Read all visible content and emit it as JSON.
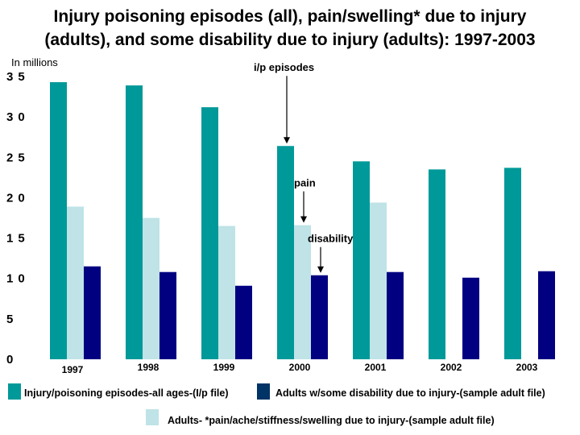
{
  "title": {
    "line1": "Injury poisoning episodes (all), pain/swelling* due to injury",
    "line2": "(adults), and some disability due to injury (adults): 1997-2003"
  },
  "units_label": "In millions",
  "chart_data": {
    "type": "bar",
    "title": "Injury poisoning episodes (all), pain/swelling* due to injury (adults), and some disability due to injury (adults): 1997-2003",
    "ylabel": "In millions",
    "xlabel": "",
    "ylim": [
      0,
      35
    ],
    "yticks": [
      "0",
      "5",
      "10",
      "15",
      "20",
      "25",
      "30",
      "35"
    ],
    "grid": false,
    "legend_position": "bottom",
    "categories": [
      "1997",
      "1998",
      "1999",
      "2000",
      "2001",
      "2002",
      "2003"
    ],
    "series": [
      {
        "name": "Injury/poisoning episodes-all ages-(I/p file)",
        "color": "#009999",
        "values": [
          34.3,
          33.9,
          31.2,
          26.4,
          24.5,
          23.5,
          23.7
        ]
      },
      {
        "name": "Adults- *pain/ache/stiffness/swelling due to injury-(sample adult file)",
        "color": "#bfe3e6",
        "values": [
          18.9,
          17.5,
          16.5,
          16.6,
          19.4,
          null,
          null
        ]
      },
      {
        "name": "Adults w/some disability due to injury-(sample adult file)",
        "color": "#000080",
        "values": [
          11.5,
          10.8,
          9.1,
          10.4,
          10.8,
          10.1,
          10.9
        ]
      }
    ],
    "annotations": [
      {
        "text": "i/p episodes",
        "category": "2000",
        "series": 0
      },
      {
        "text": "pain",
        "category": "2000",
        "series": 1
      },
      {
        "text": "disability",
        "category": "2000",
        "series": 2
      }
    ]
  }
}
